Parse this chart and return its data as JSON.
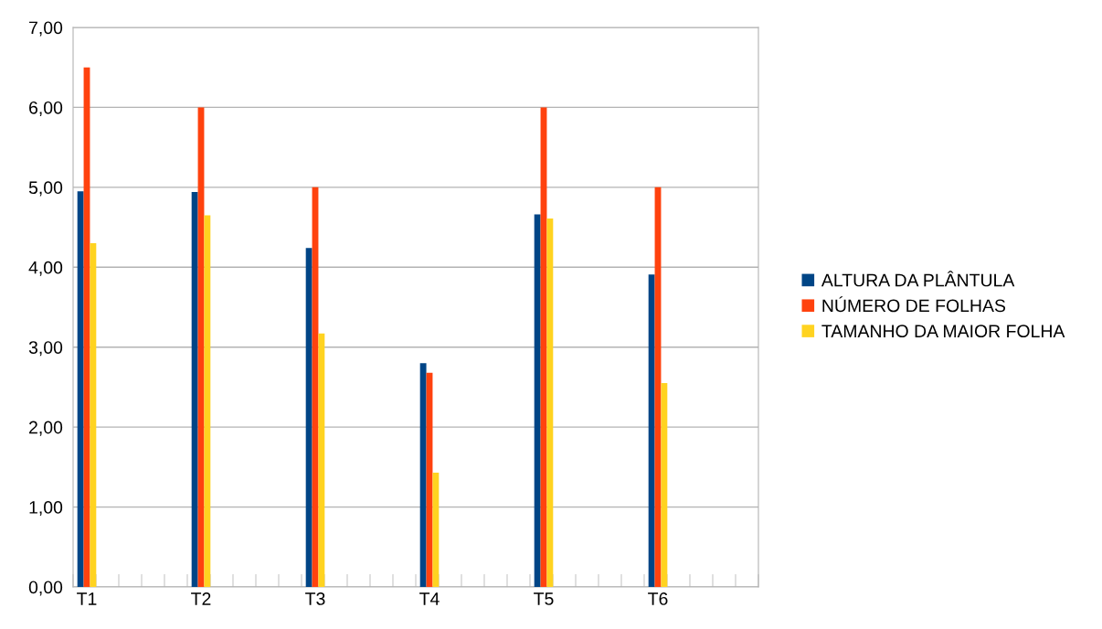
{
  "chart_data": {
    "type": "bar",
    "categories": [
      "T1",
      "T2",
      "T3",
      "T4",
      "T5",
      "T6"
    ],
    "series": [
      {
        "name": "ALTURA DA PLÂNTULA",
        "color": "#004586",
        "values": [
          4.95,
          4.94,
          4.24,
          2.8,
          4.66,
          3.91
        ]
      },
      {
        "name": "NÚMERO DE FOLHAS",
        "color": "#ff420e",
        "values": [
          6.5,
          6.0,
          5.0,
          2.68,
          6.0,
          5.0
        ]
      },
      {
        "name": "TAMANHO DA MAIOR FOLHA",
        "color": "#ffd320",
        "values": [
          4.3,
          4.65,
          3.17,
          1.43,
          4.61,
          2.55
        ]
      }
    ],
    "ylim": [
      0,
      7
    ],
    "yticks": [
      {
        "value": 0,
        "label": "0,00"
      },
      {
        "value": 1,
        "label": "1,00"
      },
      {
        "value": 2,
        "label": "2,00"
      },
      {
        "value": 3,
        "label": "3,00"
      },
      {
        "value": 4,
        "label": "4,00"
      },
      {
        "value": 5,
        "label": "5,00"
      },
      {
        "value": 6,
        "label": "6,00"
      },
      {
        "value": 7,
        "label": "7,00"
      }
    ],
    "grid": "y",
    "legend": "right"
  }
}
